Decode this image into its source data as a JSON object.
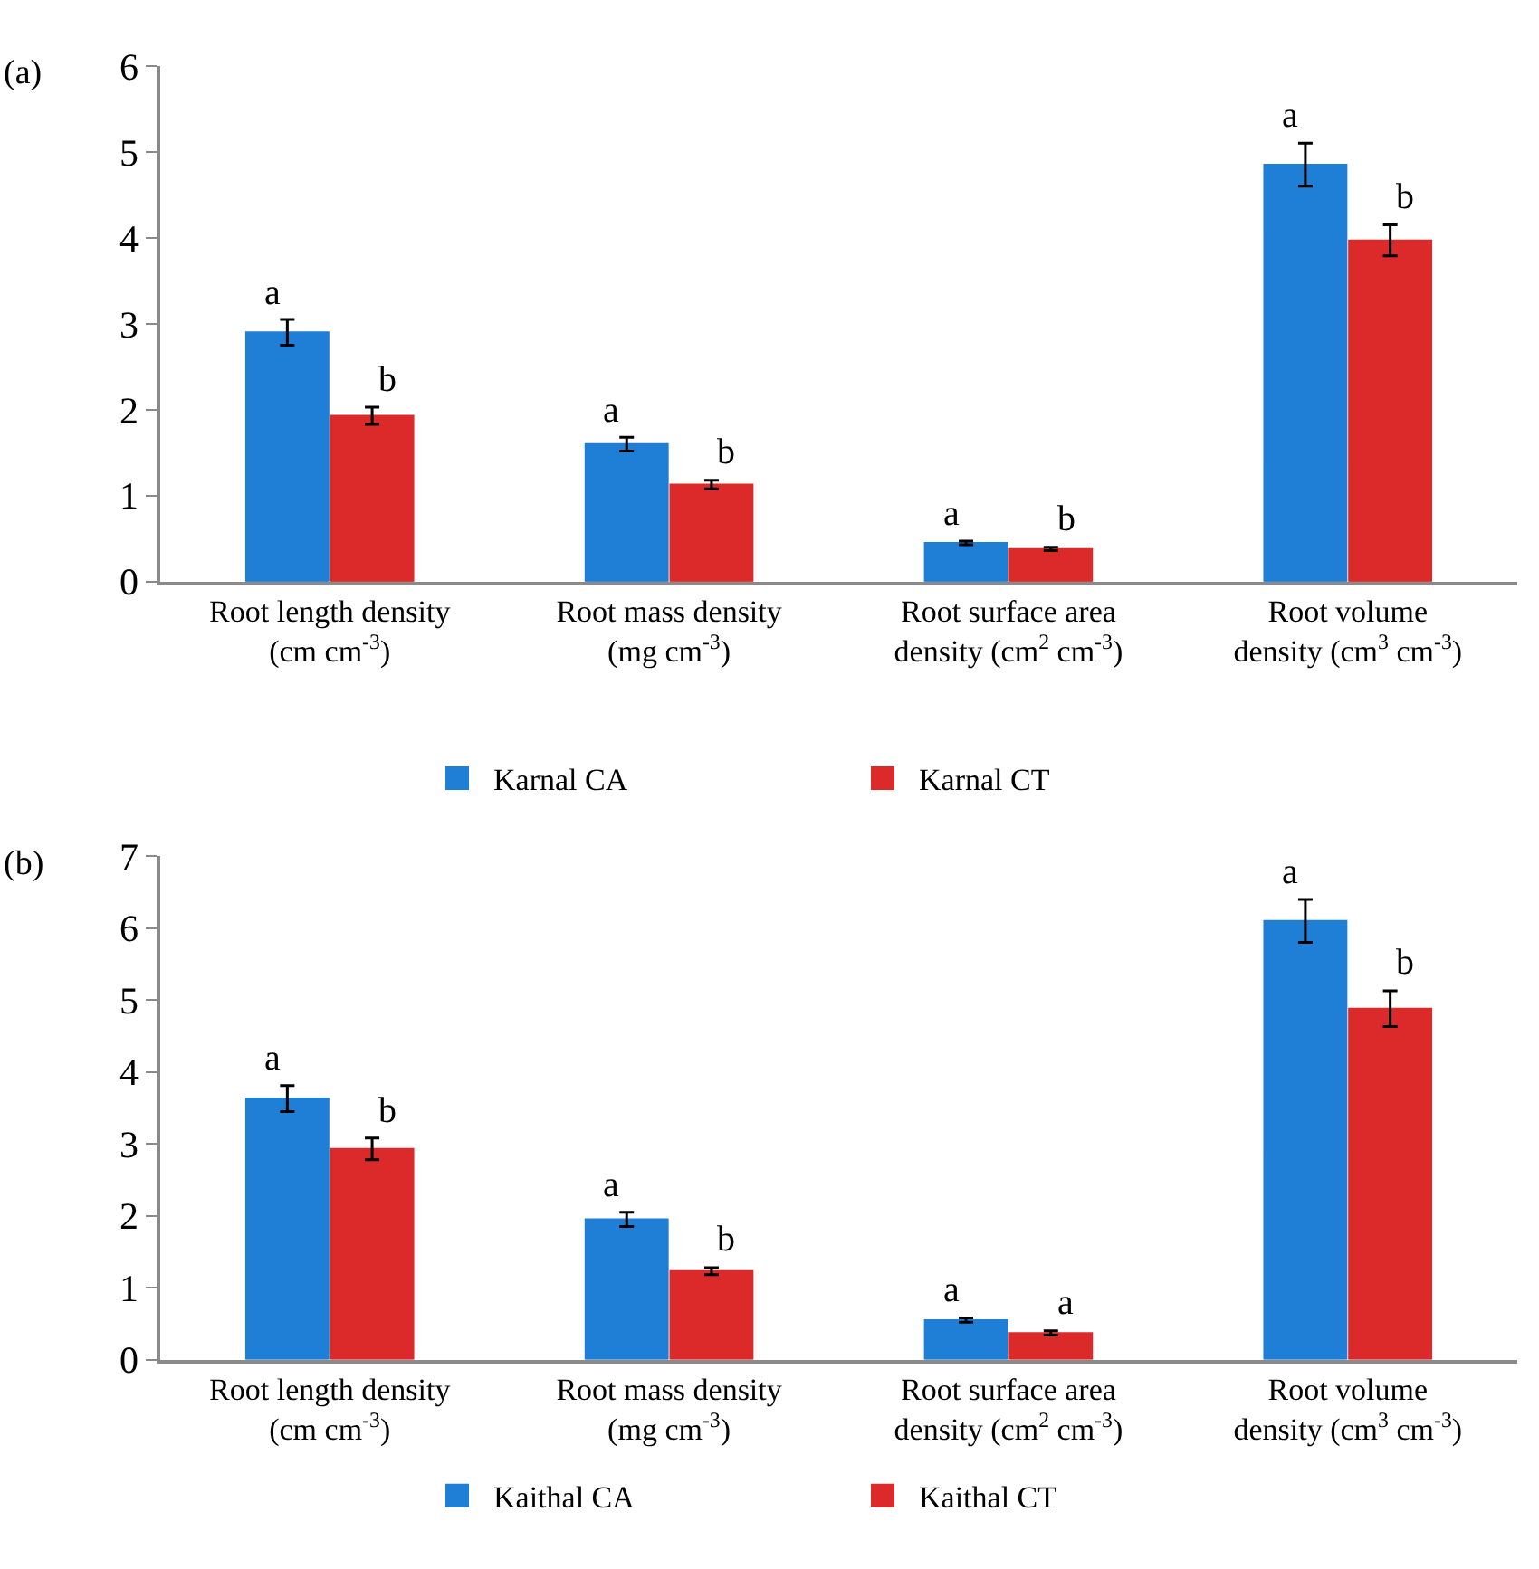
{
  "chart_data": [
    {
      "type": "bar",
      "title": "(a)",
      "categories": [
        "Root length density\n(cm cm$^{-3}$)",
        "Root mass density\n(mg cm$^{-3}$)",
        "Root surface area\ndensity (cm$^{2}$ cm$^{-3}$)",
        "Root volume\ndensity (cm$^{3}$ cm$^{-3}$)"
      ],
      "series": [
        {
          "name": "Karnal CA",
          "color": "#1f7fd6",
          "values": [
            2.9,
            1.6,
            0.45,
            4.85
          ],
          "errors": [
            0.15,
            0.08,
            0.02,
            0.25
          ],
          "value_labels": [
            "a",
            "a",
            "a",
            "a"
          ]
        },
        {
          "name": "Karnal CT",
          "color": "#dc2a2a",
          "values": [
            1.93,
            1.13,
            0.38,
            3.97
          ],
          "errors": [
            0.1,
            0.05,
            0.02,
            0.18
          ],
          "value_labels": [
            "b",
            "b",
            "b",
            "b"
          ]
        }
      ],
      "ylim": [
        0,
        6
      ],
      "yticks": [
        0,
        1,
        2,
        3,
        4,
        5,
        6
      ],
      "legend": "bottom"
    },
    {
      "type": "bar",
      "title": "(b)",
      "categories": [
        "Root length density\n(cm cm$^{-3}$)",
        "Root mass density\n(mg cm$^{-3}$)",
        "Root surface area\ndensity (cm$^{2}$ cm$^{-3}$)",
        "Root volume\ndensity (cm$^{3}$ cm$^{-3}$)"
      ],
      "series": [
        {
          "name": "Kaithal CA",
          "color": "#1f7fd6",
          "values": [
            3.63,
            1.95,
            0.55,
            6.1
          ],
          "errors": [
            0.18,
            0.1,
            0.03,
            0.3
          ],
          "value_labels": [
            "a",
            "a",
            "a",
            "a"
          ]
        },
        {
          "name": "Kaithal CT",
          "color": "#dc2a2a",
          "values": [
            2.93,
            1.23,
            0.37,
            4.88
          ],
          "errors": [
            0.15,
            0.05,
            0.03,
            0.25
          ],
          "value_labels": [
            "b",
            "b",
            "a",
            "b"
          ]
        }
      ],
      "ylim": [
        0,
        7
      ],
      "yticks": [
        0,
        1,
        2,
        3,
        4,
        5,
        6,
        7
      ],
      "legend": "bottom"
    }
  ]
}
